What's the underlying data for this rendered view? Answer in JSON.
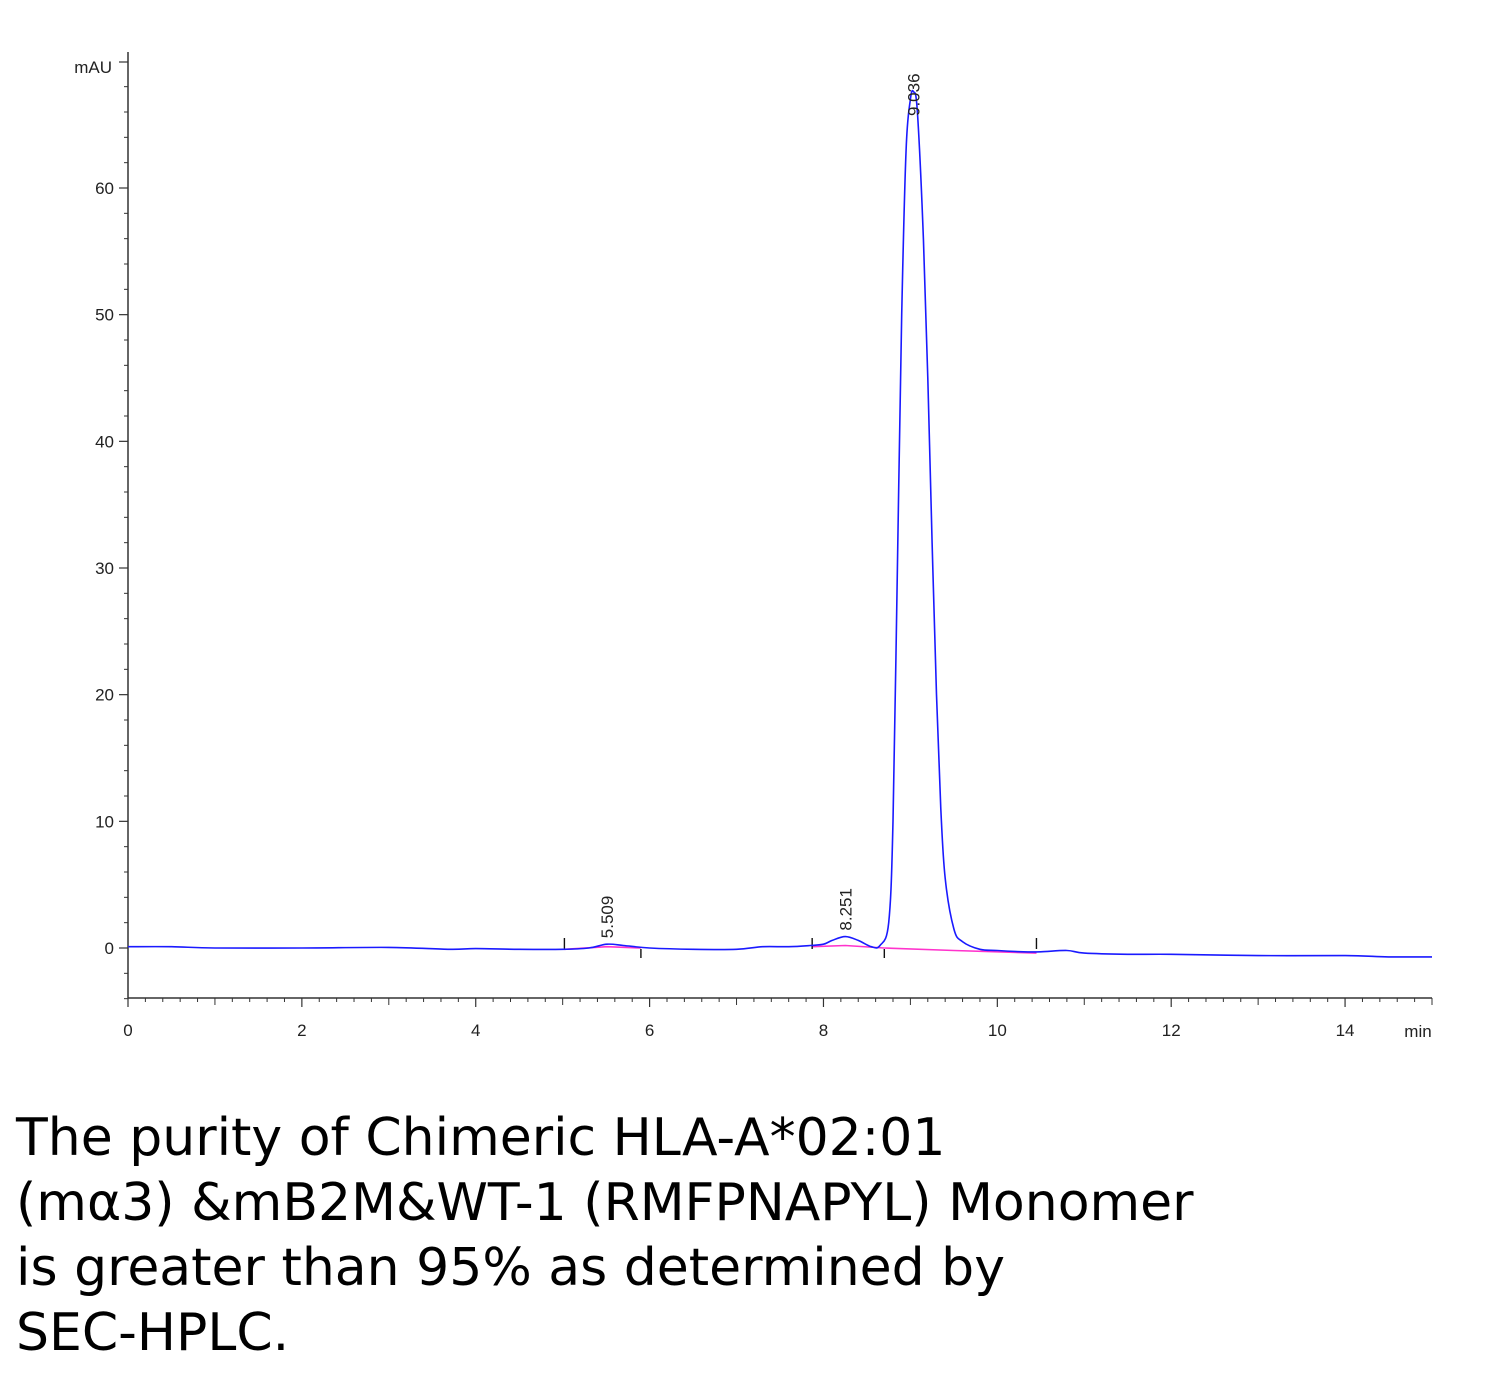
{
  "chart_data": {
    "type": "line",
    "ylabel": "mAU",
    "xlabel": "min",
    "xlim": [
      0,
      15
    ],
    "ylim": [
      -4,
      70
    ],
    "x_ticks": [
      0,
      2,
      4,
      6,
      8,
      10,
      12,
      14
    ],
    "y_ticks": [
      0,
      10,
      20,
      30,
      40,
      50,
      60
    ],
    "colors": {
      "signal": "#1a1aff",
      "baseline": "#ff33cc",
      "axis": "#333333"
    },
    "series": [
      {
        "x": [
          0,
          0.5,
          1,
          2,
          3,
          3.7,
          4,
          4.5,
          5,
          5.3,
          5.509,
          5.7,
          6,
          6.5,
          7,
          7.3,
          7.6,
          7.85,
          8.0,
          8.1,
          8.251,
          8.4,
          8.55,
          8.65,
          8.75,
          8.8,
          8.85,
          8.9,
          8.95,
          9.0,
          9.036,
          9.08,
          9.15,
          9.2,
          9.25,
          9.3,
          9.35,
          9.4,
          9.5,
          9.6,
          9.8,
          10,
          10.3,
          10.5,
          10.8,
          11,
          11.5,
          12,
          13,
          14,
          14.5,
          15
        ],
        "y": [
          0.1,
          0.1,
          0.0,
          0.0,
          0.05,
          -0.1,
          -0.05,
          -0.1,
          -0.1,
          0.0,
          0.3,
          0.2,
          0.0,
          -0.1,
          -0.1,
          0.1,
          0.1,
          0.2,
          0.3,
          0.6,
          0.9,
          0.6,
          0.1,
          0.2,
          2.0,
          10.0,
          30.0,
          50.0,
          63.0,
          67.0,
          67.6,
          66.0,
          56.0,
          45.0,
          32.0,
          20.0,
          11.0,
          5.5,
          1.5,
          0.5,
          -0.1,
          -0.2,
          -0.3,
          -0.3,
          -0.2,
          -0.4,
          -0.5,
          -0.5,
          -0.6,
          -0.6,
          -0.7,
          -0.7
        ]
      }
    ],
    "baselines": [
      {
        "x": [
          5.02,
          5.509,
          5.9
        ],
        "y": [
          -0.1,
          0.1,
          0.0
        ]
      },
      {
        "x": [
          7.87,
          8.251,
          8.7
        ],
        "y": [
          0.1,
          0.2,
          0.0
        ]
      },
      {
        "x": [
          8.7,
          9.5,
          10.45
        ],
        "y": [
          0.0,
          -0.2,
          -0.4
        ]
      }
    ],
    "integration_ticks": [
      5.02,
      5.9,
      7.87,
      8.7,
      10.45
    ],
    "peaks": [
      {
        "x": 5.509,
        "label": "5.509"
      },
      {
        "x": 8.251,
        "label": "8.251"
      },
      {
        "x": 9.036,
        "label": "9.036"
      }
    ]
  },
  "caption": {
    "lines": [
      "The purity of Chimeric HLA-A*02:01",
      "(mα3) &mB2M&WT-1 (RMFPNAPYL) Monomer",
      "is greater than 95% as determined by",
      "SEC-HPLC."
    ]
  }
}
